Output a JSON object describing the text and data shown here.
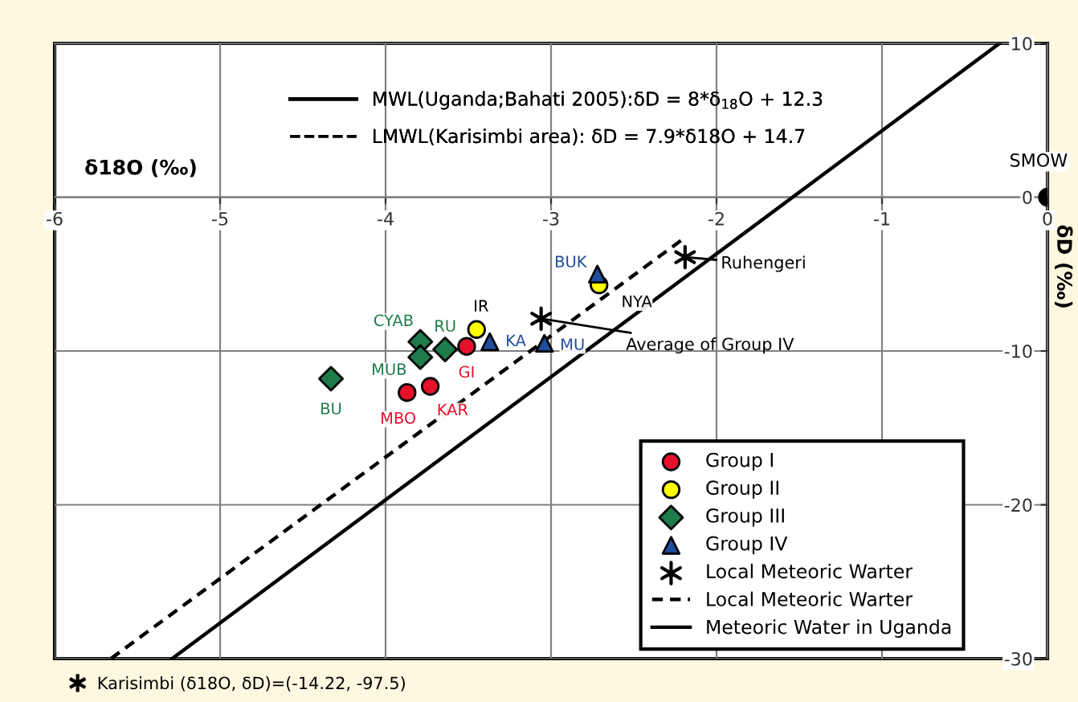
{
  "chart_data": {
    "type": "scatter",
    "xlabel": "δ18O (‰)",
    "ylabel": "δD (‰)",
    "xlim": [
      -6,
      0
    ],
    "ylim": [
      -30,
      10
    ],
    "xticks": [
      -6,
      -5,
      -4,
      -3,
      -2,
      -1,
      0
    ],
    "yticks": [
      -30,
      -20,
      -10,
      0,
      10
    ],
    "grid": true,
    "legend": "bottom right",
    "series": [
      {
        "name": "Group I",
        "color": "#e8112d",
        "marker": "circle",
        "x": [
          -3.51,
          -3.87,
          -3.73
        ],
        "values": [
          -9.7,
          -12.7,
          -12.3
        ]
      },
      {
        "name": "Group II",
        "color": "#ffff00",
        "marker": "circle",
        "x": [
          -3.45,
          -2.71
        ],
        "values": [
          -8.6,
          -5.7
        ]
      },
      {
        "name": "Group III",
        "color": "#1e7b4a",
        "marker": "diamond",
        "x": [
          -4.33,
          -3.79,
          -3.79,
          -3.64
        ],
        "values": [
          -11.8,
          -9.4,
          -10.4,
          -9.9
        ]
      },
      {
        "name": "Group IV",
        "color": "#1f4e9c",
        "marker": "triangle",
        "x": [
          -3.37,
          -3.04,
          -2.72
        ],
        "values": [
          -9.4,
          -9.5,
          -5.0
        ]
      },
      {
        "name": "Local Meteoric Warter",
        "color": "#000000",
        "marker": "cross",
        "x": [
          -2.19,
          -3.06
        ],
        "values": [
          -3.9,
          -7.9
        ]
      },
      {
        "name": "Local Meteoric Warter",
        "type": "line",
        "line_style": "dashed",
        "color": "#000000",
        "x": [
          -5.66,
          -2.2
        ],
        "values": [
          -30.0,
          -2.7
        ]
      },
      {
        "name": "Meteoric Water in Uganda",
        "type": "line",
        "line_style": "solid",
        "color": "#000000",
        "x": [
          -5.29,
          -0.29
        ],
        "values": [
          -30.0,
          10.0
        ]
      },
      {
        "color": "#000000",
        "marker": "circle",
        "x": [
          0
        ],
        "values": [
          0
        ]
      }
    ],
    "annotations": [
      "MWL(Uganda;Bahati 2005):δD = 8*δ$_{18}$O + 12.3",
      "LMWL(Karisimbi area): δD = 7.9*δ18O + 14.7",
      {
        "text": "GI",
        "x": -3.51,
        "y": -9.7
      },
      {
        "text": "MBO",
        "x": -3.87,
        "y": -12.7
      },
      {
        "text": "KAR",
        "x": -3.73,
        "y": -12.3
      },
      {
        "text": "IR",
        "x": -3.45,
        "y": -8.6
      },
      {
        "text": "NYA",
        "x": -2.71,
        "y": -5.7
      },
      {
        "text": "BU",
        "x": -4.33,
        "y": -11.8
      },
      {
        "text": "CYAB",
        "x": -3.79,
        "y": -9.4
      },
      {
        "text": "MUB",
        "x": -3.79,
        "y": -10.4
      },
      {
        "text": "RU",
        "x": -3.64,
        "y": -9.9
      },
      {
        "text": "KA",
        "x": -3.37,
        "y": -9.4
      },
      {
        "text": "MU",
        "x": -3.04,
        "y": -9.5
      },
      {
        "text": "BUK",
        "x": -2.72,
        "y": -5.0
      },
      {
        "text": "Ruhengeri",
        "x": -2.19,
        "y": -3.9
      },
      {
        "text": "Average of Group IV",
        "x": -3.06,
        "y": -7.9
      },
      {
        "text": "SMOW",
        "x": 0,
        "y": 0
      },
      "Karisimbi (δ18O, δD)=(-14.22, -97.5)"
    ]
  }
}
